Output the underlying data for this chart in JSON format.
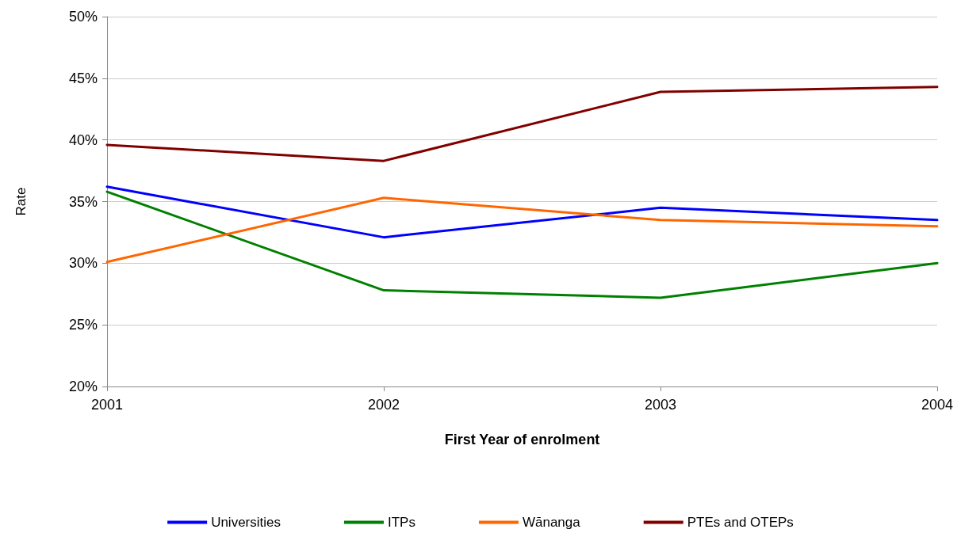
{
  "chart_data": {
    "type": "line",
    "xlabel": "First Year of enrolment",
    "ylabel": "Rate",
    "categories": [
      "2001",
      "2002",
      "2003",
      "2004"
    ],
    "series": [
      {
        "name": "Universities",
        "color": "#0000ff",
        "values": [
          36.2,
          32.1,
          34.5,
          33.5
        ]
      },
      {
        "name": "ITPs",
        "color": "#008000",
        "values": [
          35.8,
          27.8,
          27.2,
          30.0
        ]
      },
      {
        "name": "Wānanga",
        "color": "#ff6600",
        "values": [
          30.1,
          35.3,
          33.5,
          33.0
        ]
      },
      {
        "name": "PTEs and OTEPs",
        "color": "#800000",
        "values": [
          39.6,
          38.3,
          43.9,
          44.3
        ]
      }
    ],
    "ylim": [
      20,
      50
    ],
    "yticks": [
      {
        "value": 20,
        "label": "20%"
      },
      {
        "value": 25,
        "label": "25%"
      },
      {
        "value": 30,
        "label": "30%"
      },
      {
        "value": 35,
        "label": "35%"
      },
      {
        "value": 40,
        "label": "40%"
      },
      {
        "value": 45,
        "label": "45%"
      },
      {
        "value": 50,
        "label": "50%"
      }
    ],
    "grid": "y",
    "legend": "bottom",
    "marker": "none",
    "line_style": "solid"
  }
}
